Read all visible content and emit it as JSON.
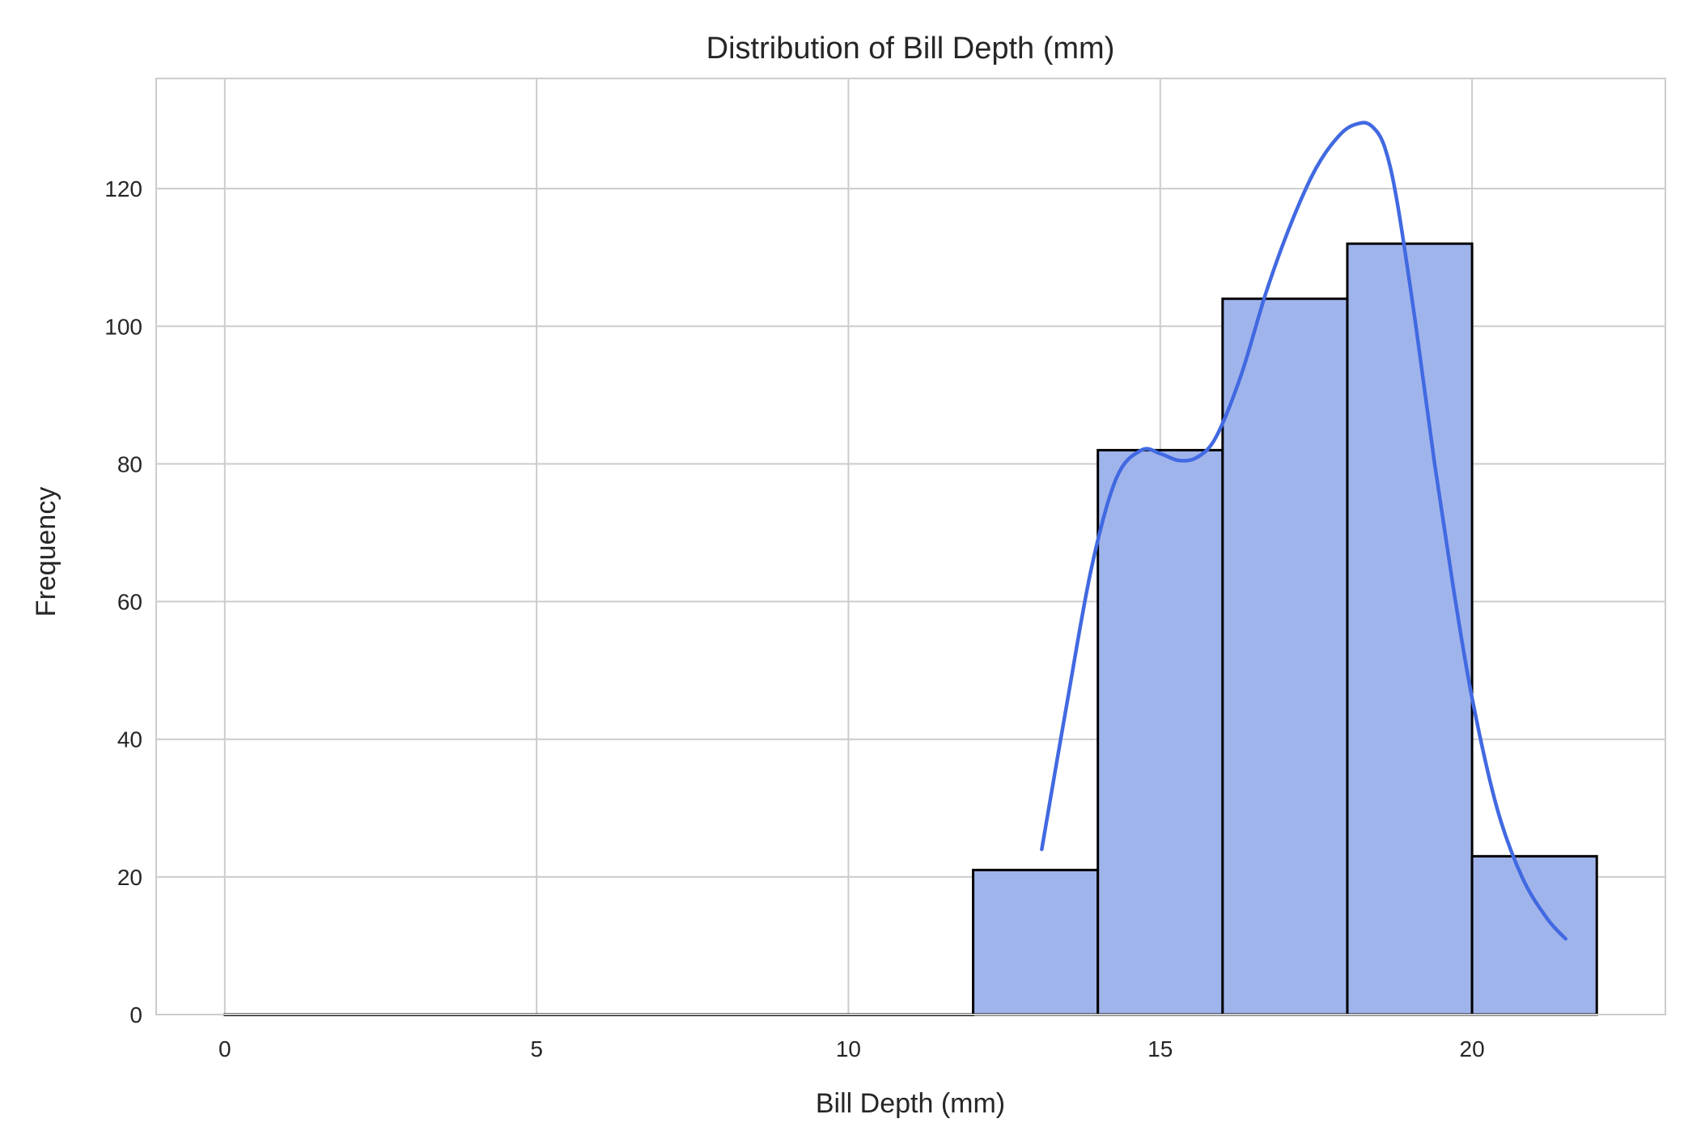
{
  "colors": {
    "bar_fill": "#a0b4ec",
    "bar_edge": "#000000",
    "kde_line": "#4169e1",
    "grid": "#cccccc"
  },
  "chart_data": {
    "type": "bar",
    "title": "Distribution of Bill Depth (mm)",
    "xlabel": "Bill Depth (mm)",
    "ylabel": "Frequency",
    "xlim": [
      -1.1,
      23.1
    ],
    "ylim": [
      0,
      136
    ],
    "xticks": [
      0,
      5,
      10,
      15,
      20
    ],
    "yticks": [
      0,
      20,
      40,
      60,
      80,
      100,
      120
    ],
    "grid": true,
    "bins": [
      {
        "x0": 0,
        "x1": 2,
        "count": 0
      },
      {
        "x0": 2,
        "x1": 4,
        "count": 0
      },
      {
        "x0": 4,
        "x1": 6,
        "count": 0
      },
      {
        "x0": 6,
        "x1": 8,
        "count": 0
      },
      {
        "x0": 8,
        "x1": 10,
        "count": 0
      },
      {
        "x0": 10,
        "x1": 12,
        "count": 0
      },
      {
        "x0": 12,
        "x1": 14,
        "count": 21
      },
      {
        "x0": 14,
        "x1": 16,
        "count": 82
      },
      {
        "x0": 16,
        "x1": 18,
        "count": 104
      },
      {
        "x0": 18,
        "x1": 20,
        "count": 112
      },
      {
        "x0": 20,
        "x1": 22,
        "count": 23
      }
    ],
    "kde": {
      "x": [
        13.1,
        13.5,
        13.9,
        14.3,
        14.7,
        15.0,
        15.3,
        15.6,
        15.9,
        16.3,
        16.7,
        17.1,
        17.5,
        17.9,
        18.2,
        18.4,
        18.6,
        18.8,
        19.1,
        19.4,
        19.7,
        20.0,
        20.4,
        20.8,
        21.2,
        21.5
      ],
      "y": [
        24,
        45,
        65,
        78,
        82,
        81.5,
        80.5,
        81,
        84,
        93,
        105,
        115,
        123,
        128,
        129.5,
        129,
        126,
        118,
        100,
        80,
        62,
        46,
        30,
        20,
        14,
        11
      ]
    }
  }
}
